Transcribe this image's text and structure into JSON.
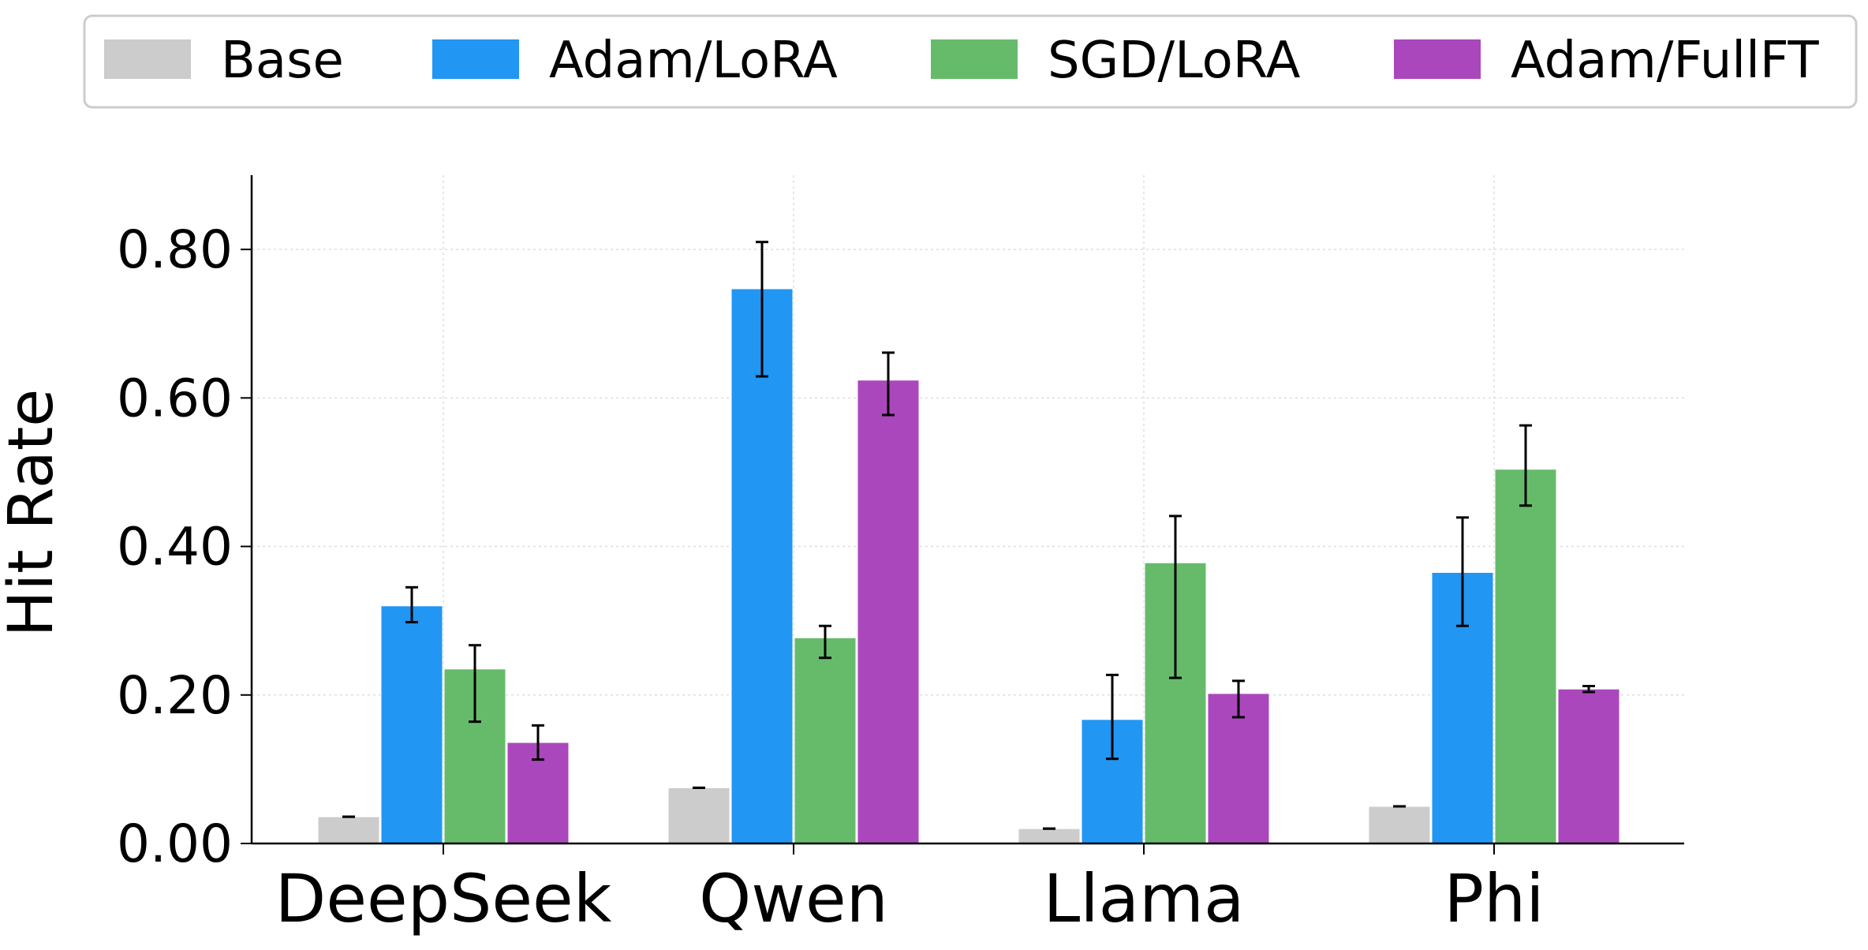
{
  "chart_data": {
    "type": "bar",
    "title": "",
    "xlabel": "",
    "ylabel": "Hit Rate",
    "ylim": [
      0,
      0.9
    ],
    "yticks": [
      0.0,
      0.2,
      0.4,
      0.6,
      0.8
    ],
    "ytick_labels": [
      "0.00",
      "0.20",
      "0.40",
      "0.60",
      "0.80"
    ],
    "grid": true,
    "legend_position": "top",
    "categories": [
      "DeepSeek",
      "Qwen",
      "Llama",
      "Phi"
    ],
    "series": [
      {
        "name": "Base",
        "color": "#cccccc",
        "values": [
          0.036,
          0.075,
          0.02,
          0.05
        ],
        "err_low": [
          0.036,
          0.075,
          0.02,
          0.05
        ],
        "err_high": [
          0.036,
          0.075,
          0.02,
          0.05
        ]
      },
      {
        "name": "Adam/LoRA",
        "color": "#2196f3",
        "values": [
          0.32,
          0.747,
          0.167,
          0.365
        ],
        "err_low": [
          0.298,
          0.629,
          0.114,
          0.293
        ],
        "err_high": [
          0.345,
          0.81,
          0.227,
          0.439
        ]
      },
      {
        "name": "SGD/LoRA",
        "color": "#66bb6a",
        "values": [
          0.235,
          0.277,
          0.378,
          0.504
        ],
        "err_low": [
          0.164,
          0.25,
          0.223,
          0.455
        ],
        "err_high": [
          0.267,
          0.293,
          0.441,
          0.563
        ]
      },
      {
        "name": "Adam/FullFT",
        "color": "#ab47bc",
        "values": [
          0.136,
          0.624,
          0.202,
          0.208
        ],
        "err_low": [
          0.113,
          0.577,
          0.17,
          0.204
        ],
        "err_high": [
          0.159,
          0.661,
          0.219,
          0.212
        ]
      }
    ]
  }
}
